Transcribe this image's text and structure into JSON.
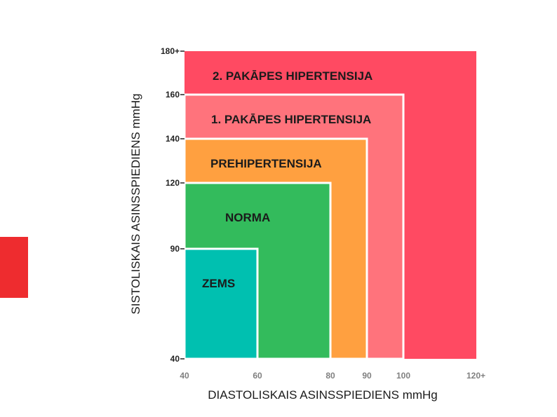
{
  "colors": {
    "side_accent": "#ee2c2f",
    "tick_y": "#222222",
    "tick_x": "#808080"
  },
  "chart_data": {
    "type": "heatmap",
    "xlabel": "DIASTOLISKAIS ASINSSPIEDIENS mmHg",
    "ylabel": "SISTOLISKAIS ASINSSPIEDIENS mmHg",
    "xlim": [
      40,
      120
    ],
    "ylim": [
      40,
      180
    ],
    "x_ticks": [
      {
        "value": 40,
        "label": "40"
      },
      {
        "value": 60,
        "label": "60"
      },
      {
        "value": 80,
        "label": "80"
      },
      {
        "value": 90,
        "label": "90"
      },
      {
        "value": 100,
        "label": "100"
      },
      {
        "value": 120,
        "label": "120+"
      }
    ],
    "y_ticks": [
      {
        "value": 40,
        "label": "40"
      },
      {
        "value": 90,
        "label": "90"
      },
      {
        "value": 120,
        "label": "120"
      },
      {
        "value": 140,
        "label": "140"
      },
      {
        "value": 160,
        "label": "160"
      },
      {
        "value": 180,
        "label": "180+"
      }
    ],
    "zones": [
      {
        "label": "2. PAKĀPES HIPERTENSIJA",
        "x_max": 120,
        "y_max": 180,
        "color": "#ff4a62"
      },
      {
        "label": "1. PAKĀPES HIPERTENSIJA",
        "x_max": 100,
        "y_max": 160,
        "color": "#ff737c"
      },
      {
        "label": "PREHIPERTENSIJA",
        "x_max": 90,
        "y_max": 140,
        "color": "#ffa040"
      },
      {
        "label": "NORMA",
        "x_max": 80,
        "y_max": 120,
        "color": "#33bb5c"
      },
      {
        "label": "ZEMS",
        "x_max": 60,
        "y_max": 90,
        "color": "#00c0b0"
      }
    ]
  }
}
